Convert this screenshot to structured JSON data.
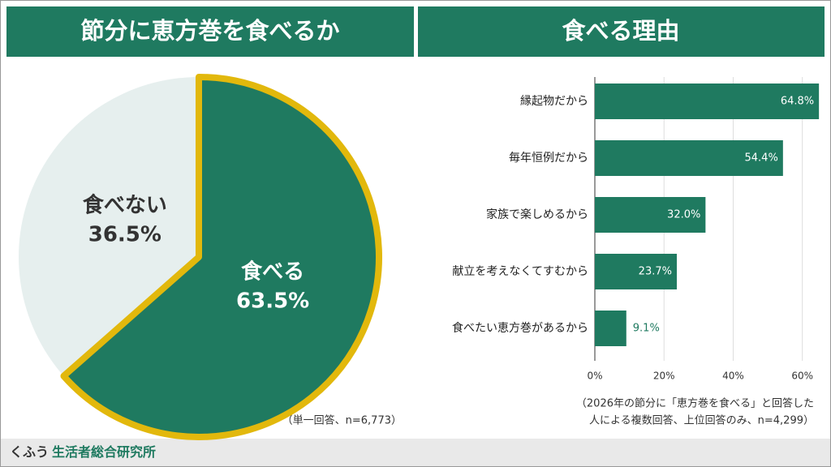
{
  "chart_data": [
    {
      "type": "pie",
      "title": "節分に恵方巻を食べるか",
      "categories": [
        "食べる",
        "食べない"
      ],
      "values": [
        63.5,
        36.5
      ],
      "value_labels": [
        "63.5%",
        "36.5%"
      ],
      "colors": [
        "#1f7a60",
        "#e6efee"
      ],
      "highlight_color": "#e2b80c",
      "note": "（単一回答、n=6,773）"
    },
    {
      "type": "hbar",
      "title": "食べる理由",
      "categories": [
        "縁起物だから",
        "毎年恒例だから",
        "家族で楽しめるから",
        "献立を考えなくてすむから",
        "食べたい恵方巻があるから"
      ],
      "values": [
        64.8,
        54.4,
        32.0,
        23.7,
        9.1
      ],
      "value_labels": [
        "64.8%",
        "54.4%",
        "32.0%",
        "23.7%",
        "9.1%"
      ],
      "color": "#1f7a60",
      "xlim": [
        0,
        65
      ],
      "xticks": [
        {
          "value": 0,
          "label": "0%"
        },
        {
          "value": 20,
          "label": "20%"
        },
        {
          "value": 40,
          "label": "40%"
        },
        {
          "value": 60,
          "label": "60%"
        }
      ],
      "grid": true,
      "note": [
        "（2026年の節分に「恵方巻を食べる」と回答した",
        "人による複数回答、上位回答のみ、n=4,299）"
      ]
    }
  ],
  "footer": {
    "brand": "くふう",
    "name": "生活者総合研究所"
  }
}
